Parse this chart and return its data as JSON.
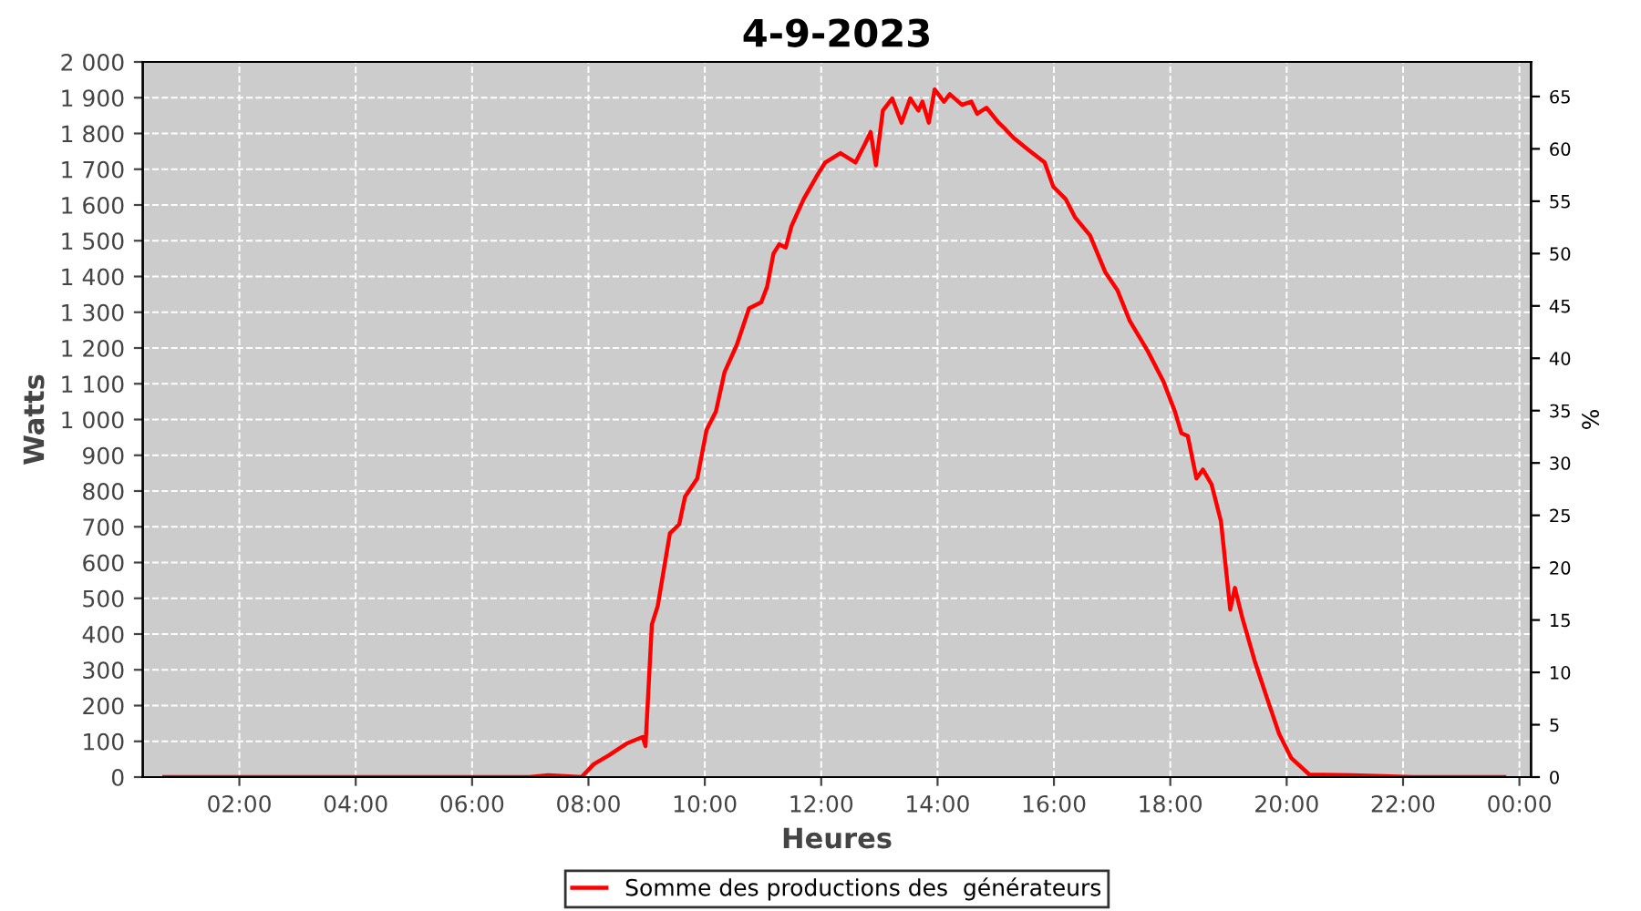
{
  "chart_data": {
    "type": "line",
    "title": "4-9-2023",
    "xlabel": "Heures",
    "ylabel": "Watts",
    "y2label": "%",
    "xlim": [
      0.34,
      24.2
    ],
    "xticks": [
      {
        "value": 2,
        "label": "02:00"
      },
      {
        "value": 4,
        "label": "04:00"
      },
      {
        "value": 6,
        "label": "06:00"
      },
      {
        "value": 8,
        "label": "08:00"
      },
      {
        "value": 10,
        "label": "10:00"
      },
      {
        "value": 12,
        "label": "12:00"
      },
      {
        "value": 14,
        "label": "14:00"
      },
      {
        "value": 16,
        "label": "16:00"
      },
      {
        "value": 18,
        "label": "18:00"
      },
      {
        "value": 20,
        "label": "20:00"
      },
      {
        "value": 22,
        "label": "22:00"
      },
      {
        "value": 24,
        "label": "00:00"
      }
    ],
    "ylim": [
      0,
      2000
    ],
    "yticks": [
      0,
      100,
      200,
      300,
      400,
      500,
      600,
      700,
      800,
      900,
      {
        "value": 1000,
        "label": "1 000"
      },
      {
        "value": 1100,
        "label": "1 100"
      },
      {
        "value": 1200,
        "label": "1 200"
      },
      {
        "value": 1300,
        "label": "1 300"
      },
      {
        "value": 1400,
        "label": "1 400"
      },
      {
        "value": 1500,
        "label": "1 500"
      },
      {
        "value": 1600,
        "label": "1 600"
      },
      {
        "value": 1700,
        "label": "1 700"
      },
      {
        "value": 1800,
        "label": "1 800"
      },
      {
        "value": 1900,
        "label": "1 900"
      },
      {
        "value": 2000,
        "label": "2 000"
      }
    ],
    "y2lim": [
      0,
      68.3
    ],
    "y2ticks": [
      0,
      5,
      10,
      15,
      20,
      25,
      30,
      35,
      40,
      45,
      50,
      55,
      60,
      65
    ],
    "grid": true,
    "legend": "bottom",
    "marker": "none",
    "line_style": "solid",
    "series": [
      {
        "name": "Somme des productions des  générateurs",
        "color": "#ff0000",
        "x": [
          0.71,
          6.99,
          7.31,
          7.88,
          8.09,
          8.35,
          8.67,
          8.93,
          8.98,
          9.09,
          9.19,
          9.4,
          9.56,
          9.66,
          9.87,
          10.03,
          10.19,
          10.34,
          10.55,
          10.76,
          10.97,
          11.07,
          11.18,
          11.28,
          11.39,
          11.49,
          11.7,
          11.91,
          12.07,
          12.33,
          12.59,
          12.75,
          12.85,
          12.94,
          13.06,
          13.22,
          13.38,
          13.53,
          13.67,
          13.74,
          13.85,
          13.95,
          14.11,
          14.21,
          14.42,
          14.58,
          14.68,
          14.84,
          15.05,
          15.16,
          15.31,
          15.57,
          15.84,
          15.99,
          16.2,
          16.36,
          16.62,
          16.88,
          17.09,
          17.3,
          17.61,
          17.88,
          18.08,
          18.19,
          18.3,
          18.45,
          18.56,
          18.71,
          18.87,
          19.03,
          19.11,
          19.24,
          19.45,
          19.66,
          19.87,
          20.08,
          20.39,
          21.12,
          22.16,
          23.74
        ],
        "values": [
          0,
          0,
          5,
          0,
          36,
          61,
          95,
          112,
          87,
          427,
          478,
          682,
          707,
          784,
          835,
          971,
          1022,
          1133,
          1209,
          1311,
          1328,
          1371,
          1464,
          1490,
          1481,
          1541,
          1617,
          1677,
          1719,
          1745,
          1719,
          1770,
          1804,
          1711,
          1864,
          1898,
          1830,
          1898,
          1864,
          1889,
          1830,
          1923,
          1889,
          1910,
          1880,
          1889,
          1855,
          1872,
          1830,
          1813,
          1787,
          1753,
          1719,
          1651,
          1617,
          1566,
          1515,
          1413,
          1362,
          1277,
          1192,
          1107,
          1022,
          962,
          954,
          835,
          860,
          818,
          716,
          469,
          529,
          444,
          325,
          222,
          121,
          53,
          7,
          5,
          0,
          0
        ]
      }
    ]
  }
}
